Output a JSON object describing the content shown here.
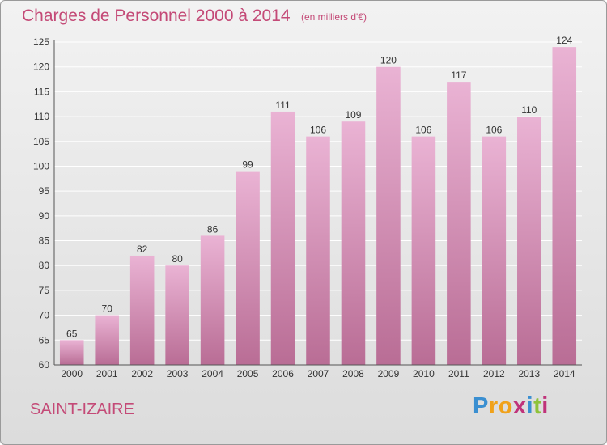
{
  "header": {
    "title": "Charges de Personnel 2000 à 2014",
    "unit": "(en milliers d'€)"
  },
  "footer": {
    "city": "SAINT-IZAIRE",
    "logo": {
      "letters": [
        "P",
        "r",
        "o",
        "x",
        "i",
        "t",
        "i"
      ],
      "colors": [
        "#3a8fd1",
        "#f0a21b",
        "#f0a21b",
        "#c0337a",
        "#3a8fd1",
        "#8fc23a",
        "#c0337a"
      ]
    }
  },
  "colors": {
    "title": "#c44a77",
    "bar_top": "#eab3d4",
    "bar_bottom": "#b96d95",
    "gridline": "#ffffff"
  },
  "chart_data": {
    "type": "bar",
    "title": "Charges de Personnel 2000 à 2014",
    "ylabel": "(en milliers d'€)",
    "categories": [
      "2000",
      "2001",
      "2002",
      "2003",
      "2004",
      "2005",
      "2006",
      "2007",
      "2008",
      "2009",
      "2010",
      "2011",
      "2012",
      "2013",
      "2014"
    ],
    "values": [
      65,
      70,
      82,
      80,
      86,
      99,
      111,
      106,
      109,
      120,
      106,
      117,
      106,
      110,
      124
    ],
    "ylim": [
      60,
      125
    ],
    "yticks": [
      60,
      65,
      70,
      75,
      80,
      85,
      90,
      95,
      100,
      105,
      110,
      115,
      120,
      125
    ],
    "grid": true,
    "data_labels": true
  }
}
